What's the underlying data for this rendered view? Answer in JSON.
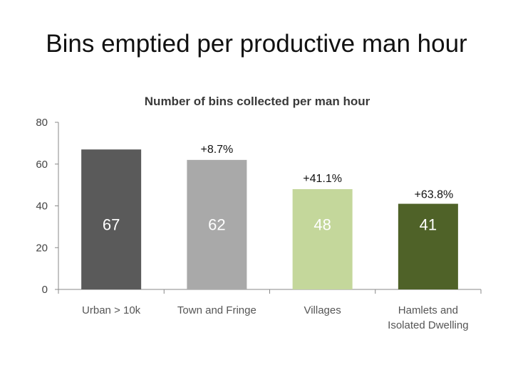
{
  "slide": {
    "title": "Bins emptied per productive man hour"
  },
  "chart_data": {
    "type": "bar",
    "title": "Number of bins collected per man hour",
    "categories": [
      [
        "Urban > 10k"
      ],
      [
        "Town and Fringe"
      ],
      [
        "Villages"
      ],
      [
        "Hamlets and",
        "Isolated Dwelling"
      ]
    ],
    "values": [
      67,
      62,
      48,
      41
    ],
    "data_labels": [
      "67",
      "62",
      "48",
      "41"
    ],
    "annotations": [
      "",
      "+8.7%",
      "+41.1%",
      "+63.8%"
    ],
    "bar_colors": [
      "#5a5a5a",
      "#a9a9a9",
      "#c4d79b",
      "#4f6228"
    ],
    "label_colors": [
      "#ffffff",
      "#ffffff",
      "#ffffff",
      "#ffffff"
    ],
    "ylim": [
      0,
      80
    ],
    "yticks": [
      0,
      20,
      40,
      60,
      80
    ],
    "grid": false,
    "legend": "none"
  }
}
